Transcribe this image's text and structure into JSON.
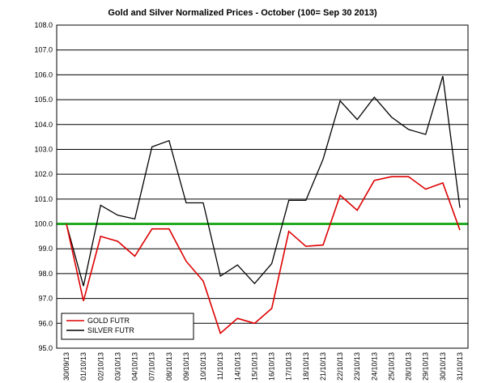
{
  "chart_data": {
    "type": "line",
    "title": "Gold and Silver Normalized Prices - October  (100= Sep 30 2013)",
    "categories": [
      "30/09/13",
      "01/10/13",
      "02/10/13",
      "03/10/13",
      "04/10/13",
      "07/10/13",
      "08/10/13",
      "09/10/13",
      "10/10/13",
      "11/10/13",
      "14/10/13",
      "15/10/13",
      "16/10/13",
      "17/10/13",
      "18/10/13",
      "21/10/13",
      "22/10/13",
      "23/10/13",
      "24/10/13",
      "25/10/13",
      "28/10/13",
      "29/10/13",
      "30/10/13",
      "31/10/13"
    ],
    "ylim": [
      95.0,
      108.0
    ],
    "yticks": [
      "95.0",
      "96.0",
      "97.0",
      "98.0",
      "99.0",
      "100.0",
      "101.0",
      "102.0",
      "103.0",
      "104.0",
      "105.0",
      "106.0",
      "107.0",
      "108.0"
    ],
    "reference_line": {
      "value": 100.0,
      "color": "#22aa22"
    },
    "grid": "horizontal",
    "legend_position": "bottom-left",
    "series": [
      {
        "name": "GOLD  FUTR",
        "color": "#dd0000",
        "values": [
          100.0,
          96.9,
          99.5,
          99.3,
          98.7,
          99.8,
          99.8,
          98.5,
          97.7,
          95.6,
          96.2,
          96.0,
          96.6,
          99.7,
          99.1,
          99.15,
          101.15,
          100.55,
          101.75,
          101.9,
          101.9,
          101.4,
          101.65,
          99.75
        ]
      },
      {
        "name": "SILVER  FUTR",
        "color": "#000000",
        "values": [
          100.0,
          97.5,
          100.75,
          100.35,
          100.2,
          103.1,
          103.35,
          100.85,
          100.85,
          97.9,
          98.35,
          97.6,
          98.4,
          100.95,
          100.95,
          102.6,
          104.95,
          104.2,
          105.1,
          104.3,
          103.8,
          103.6,
          105.95,
          100.65
        ]
      }
    ]
  }
}
